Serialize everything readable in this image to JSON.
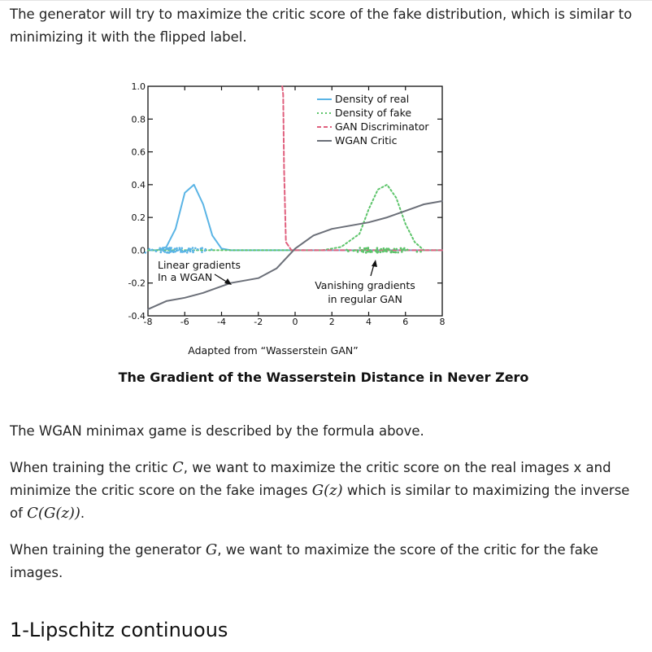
{
  "intro_text": "The generator will try to maximize the critic score of the fake distribution, which is similar to minimizing it with the flipped label.",
  "figure": {
    "credit": "Adapted from “Wasserstein GAN”",
    "caption": "The Gradient of the Wasserstein Distance in Never Zero"
  },
  "chart_data": {
    "type": "line",
    "xlim": [
      -8,
      8
    ],
    "ylim": [
      -0.4,
      1.0
    ],
    "x_ticks": [
      "-8",
      "-6",
      "-4",
      "-2",
      "0",
      "2",
      "4",
      "6",
      "8"
    ],
    "y_ticks": [
      "-0.4",
      "-0.2",
      "0.0",
      "0.2",
      "0.4",
      "0.6",
      "0.8",
      "1.0"
    ],
    "legend_position": "top-right",
    "series": [
      {
        "name": "Density of real",
        "style": "solid",
        "color": "#5ab4e5",
        "x": [
          -8,
          -7.5,
          -7,
          -6.5,
          -6,
          -5.5,
          -5,
          -4.5,
          -4,
          -3.5,
          8
        ],
        "y": [
          0.0,
          0.0,
          0.02,
          0.13,
          0.35,
          0.4,
          0.28,
          0.09,
          0.01,
          0.0,
          0.0
        ]
      },
      {
        "name": "Density of fake",
        "style": "dotted",
        "color": "#5cc46a",
        "x": [
          -8,
          0,
          1.5,
          2.5,
          3.5,
          4,
          4.5,
          5,
          5.5,
          6,
          6.5,
          7,
          8
        ],
        "y": [
          0.0,
          0.0,
          0.0,
          0.02,
          0.1,
          0.25,
          0.37,
          0.4,
          0.32,
          0.16,
          0.05,
          0.0,
          0.0
        ]
      },
      {
        "name": "GAN Discriminator",
        "style": "dashed",
        "color": "#e0607e",
        "x": [
          -0.7,
          -0.65,
          -0.6,
          -0.5,
          -0.2,
          0,
          8
        ],
        "y": [
          1.0,
          0.95,
          0.5,
          0.05,
          0.0,
          0.0,
          0.0
        ]
      },
      {
        "name": "WGAN Critic",
        "style": "solid",
        "color": "#6b6f78",
        "x": [
          -8,
          -7,
          -6,
          -5,
          -4,
          -3.5,
          -3,
          -2,
          -1,
          0,
          1,
          2,
          3,
          4,
          5,
          6,
          7,
          8
        ],
        "y": [
          -0.36,
          -0.31,
          -0.29,
          -0.26,
          -0.22,
          -0.2,
          -0.19,
          -0.17,
          -0.11,
          0.01,
          0.09,
          0.13,
          0.15,
          0.17,
          0.2,
          0.24,
          0.28,
          0.3
        ]
      }
    ],
    "annotations": [
      {
        "text": [
          "Linear gradients",
          "In  a WGAN"
        ]
      },
      {
        "text": [
          "Vanishing gradients",
          "in regular GAN"
        ]
      }
    ]
  },
  "paragraphs": {
    "p1": "The WGAN minimax game is described by the formula above.",
    "p2_a": "When training the critic ",
    "p2_m1": "C",
    "p2_b": ", we want to maximize the critic score on the real images x and minimize the critic score on the fake images ",
    "p2_m2": "G(z)",
    "p2_c": " which is similar to maximizing the inverse of ",
    "p2_m3": "C(G(z))",
    "p2_d": ".",
    "p3_a": "When training the generator ",
    "p3_m1": "G",
    "p3_b": ", we want to maximize the score of the critic for the fake images."
  },
  "section_heading": "1-Lipschitz continuous"
}
